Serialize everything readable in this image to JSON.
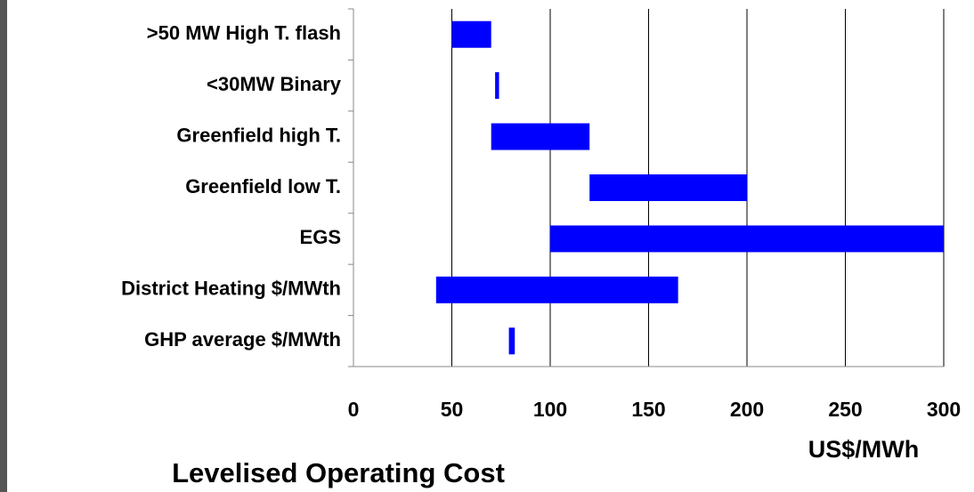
{
  "chart_data": {
    "type": "range-bar",
    "title": "Levelised Operating Cost",
    "x_label": "US$/MWh",
    "categories": [
      ">50 MW High T. flash",
      "<30MW Binary",
      "Greenfield high T.",
      "Greenfield low T.",
      "EGS",
      "District Heating $/MWth",
      "GHP average $/MWth"
    ],
    "low": [
      50,
      72,
      70,
      120,
      100,
      42,
      79
    ],
    "high": [
      70,
      74,
      120,
      200,
      300,
      165,
      82
    ],
    "color": "#0000ff",
    "xlim": [
      0,
      300
    ],
    "xticks": [
      0,
      50,
      100,
      150,
      200,
      250,
      300
    ],
    "grid": true
  }
}
